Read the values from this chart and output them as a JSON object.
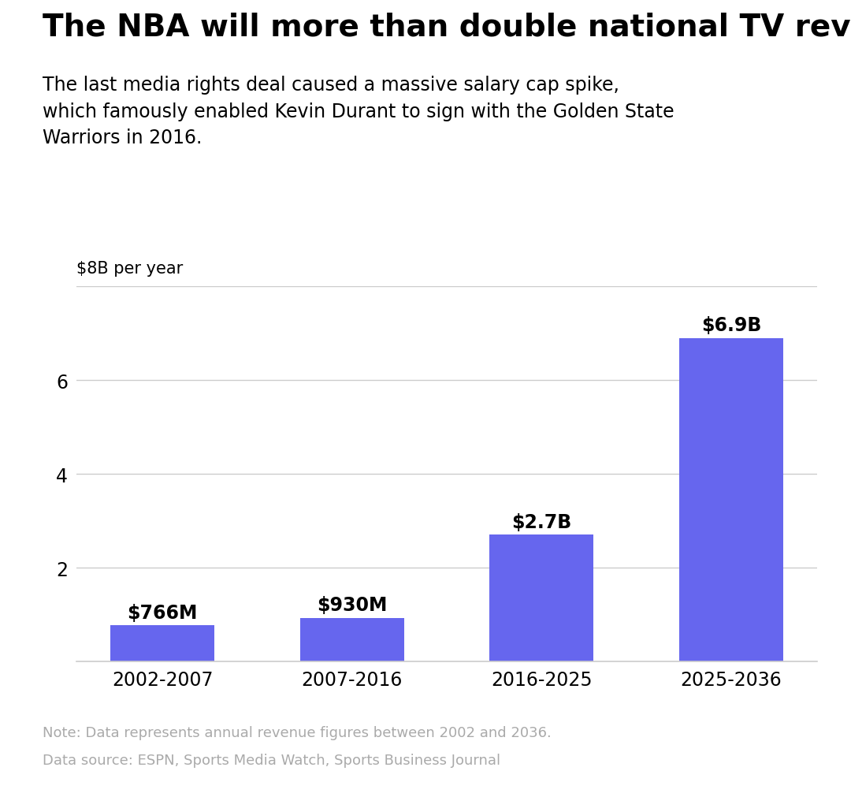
{
  "title": "The NBA will more than double national TV revenue",
  "subtitle": "The last media rights deal caused a massive salary cap spike,\nwhich famously enabled Kevin Durant to sign with the Golden State\nWarriors in 2016.",
  "categories": [
    "2002-2007",
    "2007-2016",
    "2016-2025",
    "2025-2036"
  ],
  "values": [
    0.766,
    0.93,
    2.7,
    6.9
  ],
  "labels": [
    "$766M",
    "$930M",
    "$2.7B",
    "$6.9B"
  ],
  "bar_color": "#6666ee",
  "ylim": [
    0,
    8
  ],
  "yticks": [
    2,
    4,
    6
  ],
  "y_top_label": "$8B per year",
  "note_line1": "Note: Data represents annual revenue figures between 2002 and 2036.",
  "note_line2": "Data source: ESPN, Sports Media Watch, Sports Business Journal",
  "background_color": "#ffffff",
  "grid_color": "#cccccc",
  "title_fontsize": 28,
  "subtitle_fontsize": 17,
  "label_fontsize": 17,
  "tick_fontsize": 17,
  "note_fontsize": 13,
  "note_color": "#aaaaaa",
  "label_fontweight": "bold"
}
